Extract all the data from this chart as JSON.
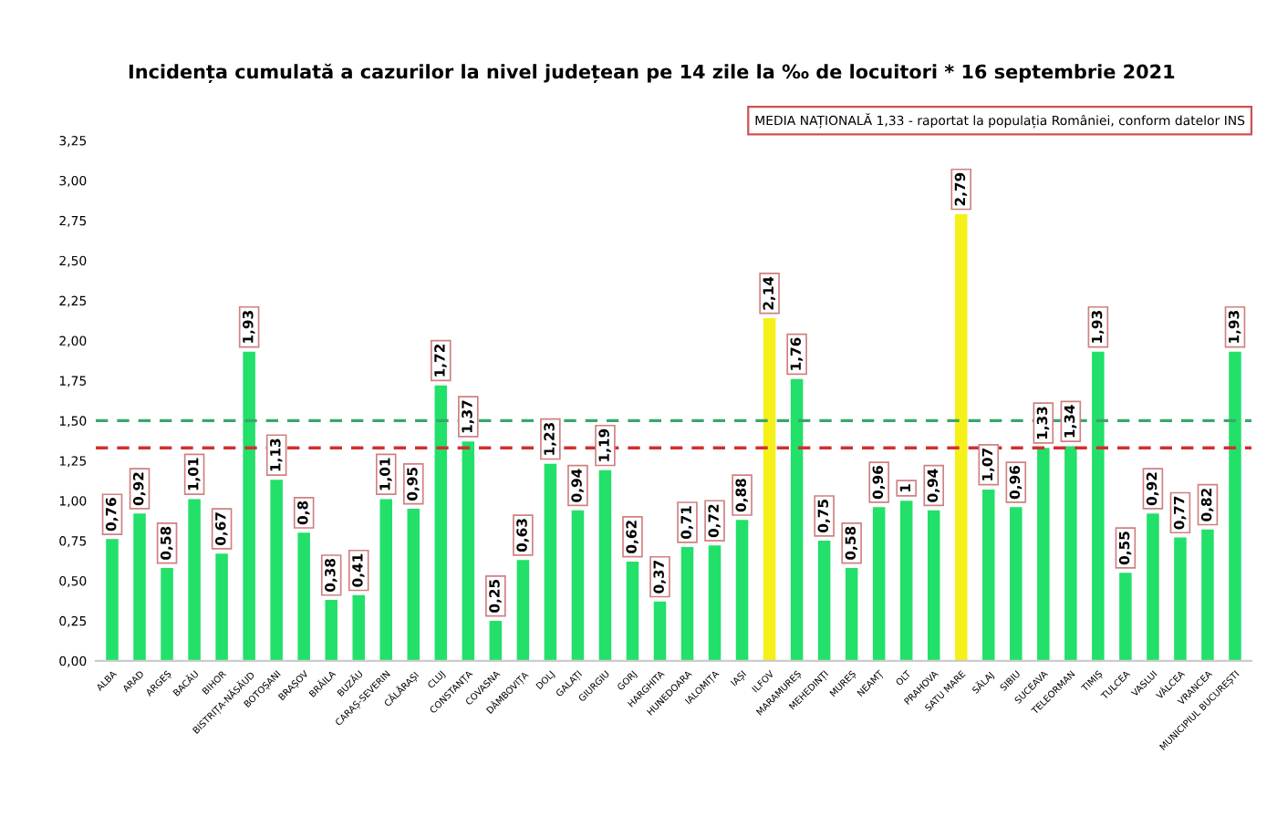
{
  "chart_data": {
    "type": "bar",
    "title": "Incidența cumulată a cazurilor la nivel județean pe 14 zile la ‰ de locuitori * 16 septembrie 2021",
    "categories": [
      "ALBA",
      "ARAD",
      "ARGEȘ",
      "BACĂU",
      "BIHOR",
      "BISTRIȚA-NĂSĂUD",
      "BOTOȘANI",
      "BRAȘOV",
      "BRĂILA",
      "BUZĂU",
      "CARAȘ-SEVERIN",
      "CĂLĂRAȘI",
      "CLUJ",
      "CONSTANȚA",
      "COVASNA",
      "DÂMBOVIȚA",
      "DOLJ",
      "GALAȚI",
      "GIURGIU",
      "GORJ",
      "HARGHITA",
      "HUNEDOARA",
      "IALOMIȚA",
      "IAȘI",
      "ILFOV",
      "MARAMUREȘ",
      "MEHEDINȚI",
      "MUREȘ",
      "NEAMȚ",
      "OLT",
      "PRAHOVA",
      "SATU MARE",
      "SĂLAJ",
      "SIBIU",
      "SUCEAVA",
      "TELEORMAN",
      "TIMIȘ",
      "TULCEA",
      "VASLUI",
      "VÂLCEA",
      "VRANCEA",
      "MUNICIPIUL BUCUREȘTI"
    ],
    "values": [
      0.76,
      0.92,
      0.58,
      1.01,
      0.67,
      1.93,
      1.13,
      0.8,
      0.38,
      0.41,
      1.01,
      0.95,
      1.72,
      1.37,
      0.25,
      0.63,
      1.23,
      0.94,
      1.19,
      0.62,
      0.37,
      0.71,
      0.72,
      0.88,
      2.14,
      1.76,
      0.75,
      0.58,
      0.96,
      1,
      0.94,
      2.79,
      1.07,
      0.96,
      1.33,
      1.34,
      1.93,
      0.55,
      0.92,
      0.77,
      0.82,
      1.93
    ],
    "colors": [
      "#22e06a",
      "#22e06a",
      "#22e06a",
      "#22e06a",
      "#22e06a",
      "#22e06a",
      "#22e06a",
      "#22e06a",
      "#22e06a",
      "#22e06a",
      "#22e06a",
      "#22e06a",
      "#22e06a",
      "#22e06a",
      "#22e06a",
      "#22e06a",
      "#22e06a",
      "#22e06a",
      "#22e06a",
      "#22e06a",
      "#22e06a",
      "#22e06a",
      "#22e06a",
      "#22e06a",
      "#f5f01a",
      "#22e06a",
      "#22e06a",
      "#22e06a",
      "#22e06a",
      "#22e06a",
      "#22e06a",
      "#f5f01a",
      "#22e06a",
      "#22e06a",
      "#22e06a",
      "#22e06a",
      "#22e06a",
      "#22e06a",
      "#22e06a",
      "#22e06a",
      "#22e06a",
      "#22e06a"
    ],
    "ylim": [
      0,
      3.25
    ],
    "yticks": [
      {
        "value": 0,
        "label": "0,00"
      },
      {
        "value": 0.25,
        "label": "0,25"
      },
      {
        "value": 0.5,
        "label": "0,50"
      },
      {
        "value": 0.75,
        "label": "0,75"
      },
      {
        "value": 1,
        "label": "1,00"
      },
      {
        "value": 1.25,
        "label": "1,25"
      },
      {
        "value": 1.5,
        "label": "1,50"
      },
      {
        "value": 1.75,
        "label": "1,75"
      },
      {
        "value": 2,
        "label": "2,00"
      },
      {
        "value": 2.25,
        "label": "2,25"
      },
      {
        "value": 2.5,
        "label": "2,50"
      },
      {
        "value": 2.75,
        "label": "2,75"
      },
      {
        "value": 3,
        "label": "3,00"
      },
      {
        "value": 3.25,
        "label": "3,25"
      }
    ],
    "ref_lines": [
      {
        "axis": "y",
        "value": 1.5,
        "label": null,
        "color": "#3aa66a",
        "line_style": "dashed"
      },
      {
        "axis": "y",
        "value": 1.33,
        "label": null,
        "color": "#d03030",
        "line_style": "dashed"
      }
    ],
    "annotations": [
      "MEDIA NAȚIONALĂ 1,33 - raportat la populația României, conform datelor INS"
    ],
    "value_labels": [
      "0,76",
      "0,92",
      "0,58",
      "1,01",
      "0,67",
      "1,93",
      "1,13",
      "0,8",
      "0,38",
      "0,41",
      "1,01",
      "0,95",
      "1,72",
      "1,37",
      "0,25",
      "0,63",
      "1,23",
      "0,94",
      "1,19",
      "0,62",
      "0,37",
      "0,71",
      "0,72",
      "0,88",
      "2,14",
      "1,76",
      "0,75",
      "0,58",
      "0,96",
      "1",
      "0,94",
      "2,79",
      "1,07",
      "0,96",
      "1,33",
      "1,34",
      "1,93",
      "0,55",
      "0,92",
      "0,77",
      "0,82",
      "1,93"
    ],
    "grid": false,
    "legend": false
  }
}
